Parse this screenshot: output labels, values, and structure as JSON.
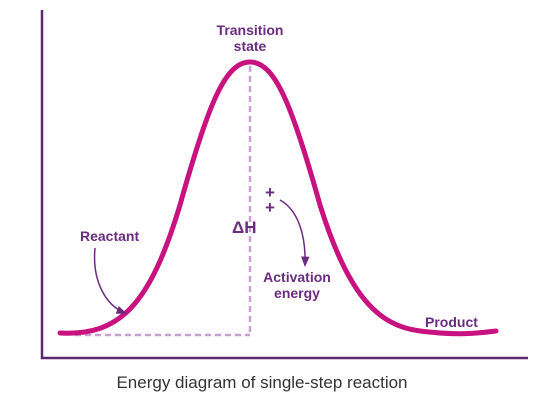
{
  "transition_state": [
    "Transition",
    "state"
  ],
  "reactant": "Reactant",
  "delta_h": "ΔH",
  "double_dagger": [
    "+",
    "+"
  ],
  "activation_energy": [
    "Activation",
    "energy"
  ],
  "product": "Product",
  "caption": "Energy diagram of single-step reaction"
}
